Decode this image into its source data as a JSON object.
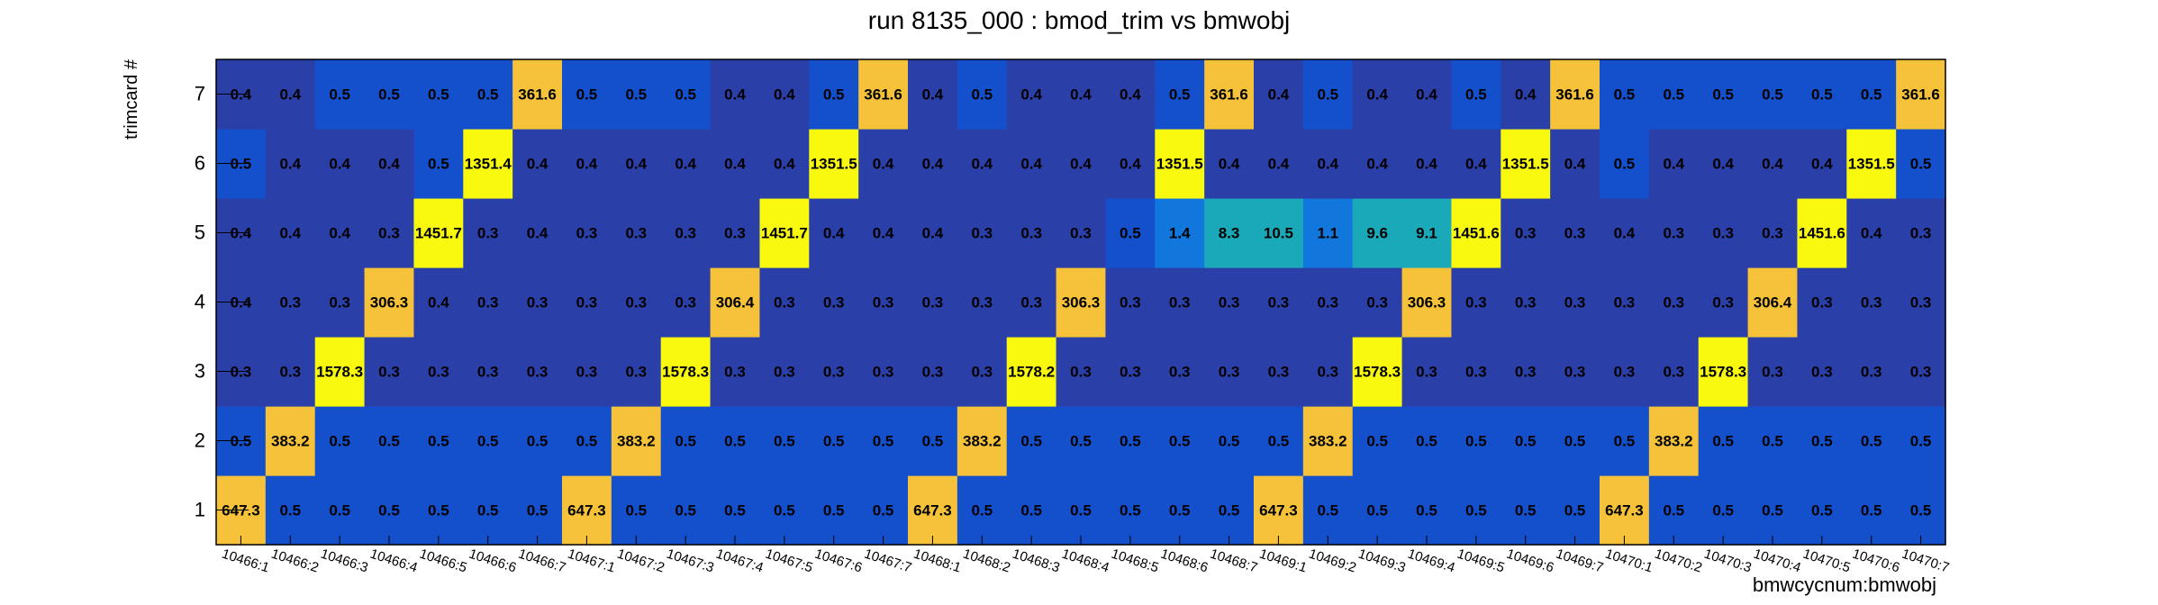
{
  "chart_data": {
    "type": "heatmap",
    "title": "run 8135_000 : bmod_trim vs bmwobj",
    "xlabel": "bmwcycnum:bmwobj",
    "ylabel": "trimcard #",
    "x": [
      "10466:1",
      "10466:2",
      "10466:3",
      "10466:4",
      "10466:5",
      "10466:6",
      "10466:7",
      "10467:1",
      "10467:2",
      "10467:3",
      "10467:4",
      "10467:5",
      "10467:6",
      "10467:7",
      "10468:1",
      "10468:2",
      "10468:3",
      "10468:4",
      "10468:5",
      "10468:6",
      "10468:7",
      "10469:1",
      "10469:2",
      "10469:3",
      "10469:4",
      "10469:5",
      "10469:6",
      "10469:7",
      "10470:1",
      "10470:2",
      "10470:3",
      "10470:4",
      "10470:5",
      "10470:6",
      "10470:7"
    ],
    "y": [
      "1",
      "2",
      "3",
      "4",
      "5",
      "6",
      "7"
    ],
    "values": [
      [
        "647.3",
        "0.5",
        "0.5",
        "0.5",
        "0.5",
        "0.5",
        "0.5",
        "647.3",
        "0.5",
        "0.5",
        "0.5",
        "0.5",
        "0.5",
        "0.5",
        "647.3",
        "0.5",
        "0.5",
        "0.5",
        "0.5",
        "0.5",
        "0.5",
        "647.3",
        "0.5",
        "0.5",
        "0.5",
        "0.5",
        "0.5",
        "0.5",
        "647.3",
        "0.5",
        "0.5",
        "0.5",
        "0.5",
        "0.5",
        "0.5"
      ],
      [
        "0.5",
        "383.2",
        "0.5",
        "0.5",
        "0.5",
        "0.5",
        "0.5",
        "0.5",
        "383.2",
        "0.5",
        "0.5",
        "0.5",
        "0.5",
        "0.5",
        "0.5",
        "383.2",
        "0.5",
        "0.5",
        "0.5",
        "0.5",
        "0.5",
        "0.5",
        "383.2",
        "0.5",
        "0.5",
        "0.5",
        "0.5",
        "0.5",
        "0.5",
        "383.2",
        "0.5",
        "0.5",
        "0.5",
        "0.5",
        "0.5"
      ],
      [
        "0.3",
        "0.3",
        "1578.3",
        "0.3",
        "0.3",
        "0.3",
        "0.3",
        "0.3",
        "0.3",
        "1578.3",
        "0.3",
        "0.3",
        "0.3",
        "0.3",
        "0.3",
        "0.3",
        "1578.2",
        "0.3",
        "0.3",
        "0.3",
        "0.3",
        "0.3",
        "0.3",
        "1578.3",
        "0.3",
        "0.3",
        "0.3",
        "0.3",
        "0.3",
        "0.3",
        "1578.3",
        "0.3",
        "0.3",
        "0.3",
        "0.3"
      ],
      [
        "0.4",
        "0.3",
        "0.3",
        "306.3",
        "0.4",
        "0.3",
        "0.3",
        "0.3",
        "0.3",
        "0.3",
        "306.4",
        "0.3",
        "0.3",
        "0.3",
        "0.3",
        "0.3",
        "0.3",
        "306.3",
        "0.3",
        "0.3",
        "0.3",
        "0.3",
        "0.3",
        "0.3",
        "306.3",
        "0.3",
        "0.3",
        "0.3",
        "0.3",
        "0.3",
        "0.3",
        "306.4",
        "0.3",
        "0.3",
        "0.3"
      ],
      [
        "0.4",
        "0.4",
        "0.4",
        "0.3",
        "1451.7",
        "0.3",
        "0.4",
        "0.3",
        "0.3",
        "0.3",
        "0.3",
        "1451.7",
        "0.4",
        "0.4",
        "0.4",
        "0.3",
        "0.3",
        "0.3",
        "0.5",
        "1.4",
        "8.3",
        "10.5",
        "1.1",
        "9.6",
        "9.1",
        "1451.6",
        "0.3",
        "0.3",
        "0.4",
        "0.3",
        "0.3",
        "0.3",
        "1451.6",
        "0.4",
        "0.3"
      ],
      [
        "0.5",
        "0.4",
        "0.4",
        "0.4",
        "0.5",
        "1351.4",
        "0.4",
        "0.4",
        "0.4",
        "0.4",
        "0.4",
        "0.4",
        "1351.5",
        "0.4",
        "0.4",
        "0.4",
        "0.4",
        "0.4",
        "0.4",
        "1351.5",
        "0.4",
        "0.4",
        "0.4",
        "0.4",
        "0.4",
        "0.4",
        "1351.5",
        "0.4",
        "0.5",
        "0.4",
        "0.4",
        "0.4",
        "0.4",
        "1351.5",
        "0.5"
      ],
      [
        "0.4",
        "0.4",
        "0.5",
        "0.5",
        "0.5",
        "0.5",
        "361.6",
        "0.5",
        "0.5",
        "0.5",
        "0.4",
        "0.4",
        "0.5",
        "361.6",
        "0.4",
        "0.5",
        "0.4",
        "0.4",
        "0.4",
        "0.5",
        "361.6",
        "0.4",
        "0.5",
        "0.4",
        "0.4",
        "0.5",
        "0.4",
        "361.6",
        "0.5",
        "0.5",
        "0.5",
        "0.5",
        "0.5",
        "0.5",
        "361.6"
      ]
    ],
    "colors": {
      "very_high": "#f9f90f",
      "high": "#f5c23a",
      "mid_high": "#1aa9b8",
      "mid": "#1177dd",
      "low_plus": "#1550cc",
      "low": "#2a3fa8",
      "frame": "#000000"
    }
  }
}
